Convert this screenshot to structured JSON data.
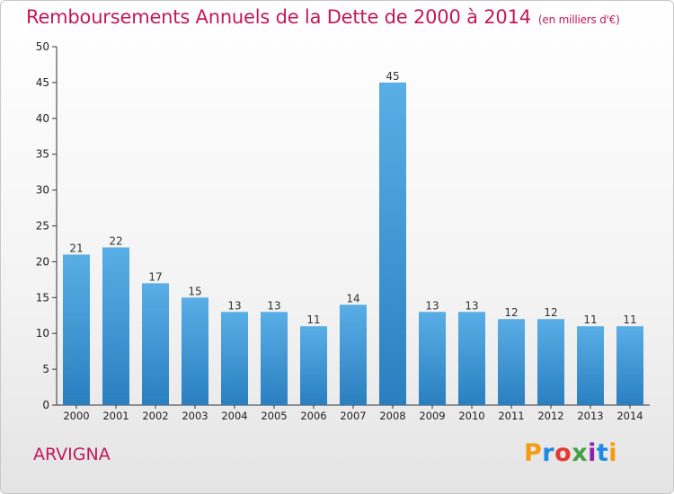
{
  "header": {
    "title": "Remboursements Annuels de la Dette de 2000 à 2014",
    "unit": "(en milliers d'€)"
  },
  "footer": {
    "commune": "ARVIGNA",
    "logo": "Proxiti"
  },
  "colors": {
    "title": "#c2185b",
    "bar_top": "#5aaee6",
    "bar_bottom": "#2a7fc0",
    "logo_letters": [
      "#f39c12",
      "#1e88e5",
      "#e53935",
      "#43a047",
      "#8e24aa",
      "#1e88e5",
      "#f39c12"
    ]
  },
  "chart_data": {
    "type": "bar",
    "categories": [
      "2000",
      "2001",
      "2002",
      "2003",
      "2004",
      "2005",
      "2006",
      "2007",
      "2008",
      "2009",
      "2010",
      "2011",
      "2012",
      "2013",
      "2014"
    ],
    "values": [
      21,
      22,
      17,
      15,
      13,
      13,
      11,
      14,
      45,
      13,
      13,
      12,
      12,
      11,
      11
    ],
    "title": "Remboursements Annuels de la Dette de 2000 à 2014",
    "xlabel": "",
    "ylabel": "",
    "ylim": [
      0,
      50
    ],
    "yticks": [
      0,
      5,
      10,
      15,
      20,
      25,
      30,
      35,
      40,
      45,
      50
    ],
    "grid": false,
    "data_labels": true
  }
}
